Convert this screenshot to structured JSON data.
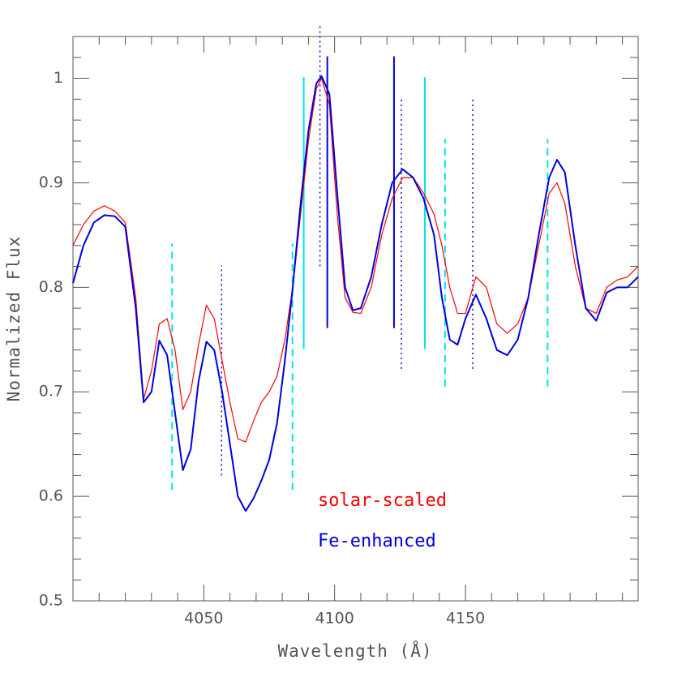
{
  "chart_data": {
    "type": "line",
    "xlabel": "Wavelength (Å)",
    "ylabel": "Normalized Flux",
    "xlim": [
      4000,
      4216
    ],
    "ylim": [
      0.5,
      1.04
    ],
    "xticks": [
      4050,
      4100,
      4150
    ],
    "yticks": [
      0.5,
      0.6,
      0.7,
      0.8,
      0.9,
      1
    ],
    "xminorticks": [
      4000,
      4010,
      4020,
      4030,
      4040,
      4060,
      4070,
      4080,
      4090,
      4110,
      4120,
      4130,
      4140,
      4160,
      4170,
      4180,
      4190,
      4200,
      4210
    ],
    "yminorticks": [
      0.52,
      0.54,
      0.56,
      0.58,
      0.62,
      0.64,
      0.66,
      0.68,
      0.72,
      0.74,
      0.76,
      0.78,
      0.82,
      0.84,
      0.86,
      0.88,
      0.92,
      0.94,
      0.96,
      0.98,
      1.02,
      1.04
    ],
    "x": [
      4000,
      4004,
      4008,
      4012,
      4016,
      4020,
      4024,
      4027,
      4030,
      4033,
      4036,
      4039,
      4042,
      4045,
      4048,
      4051,
      4054,
      4057,
      4060,
      4063,
      4066,
      4069,
      4072,
      4075,
      4078,
      4081,
      4084,
      4087,
      4090,
      4093,
      4095,
      4098,
      4101,
      4104,
      4107,
      4110,
      4114,
      4118,
      4122,
      4126,
      4130,
      4134,
      4138,
      4141,
      4144,
      4147,
      4150,
      4154,
      4158,
      4162,
      4166,
      4170,
      4174,
      4178,
      4182,
      4185,
      4188,
      4192,
      4196,
      4200,
      4204,
      4208,
      4212,
      4216
    ],
    "series": [
      {
        "name": "solar-scaled",
        "color": "#ff0000",
        "width": 1.2,
        "values": [
          0.84,
          0.86,
          0.873,
          0.878,
          0.873,
          0.862,
          0.79,
          0.693,
          0.72,
          0.765,
          0.77,
          0.74,
          0.683,
          0.7,
          0.745,
          0.783,
          0.77,
          0.73,
          0.69,
          0.655,
          0.652,
          0.672,
          0.69,
          0.7,
          0.715,
          0.75,
          0.8,
          0.87,
          0.94,
          0.99,
          1.0,
          0.975,
          0.87,
          0.79,
          0.776,
          0.775,
          0.8,
          0.85,
          0.885,
          0.905,
          0.905,
          0.89,
          0.87,
          0.84,
          0.8,
          0.775,
          0.775,
          0.81,
          0.8,
          0.765,
          0.756,
          0.765,
          0.79,
          0.84,
          0.89,
          0.9,
          0.88,
          0.82,
          0.78,
          0.775,
          0.8,
          0.807,
          0.81,
          0.82
        ]
      },
      {
        "name": "Fe-enhanced",
        "color": "#0000dd",
        "width": 2,
        "values": [
          0.804,
          0.84,
          0.862,
          0.869,
          0.868,
          0.858,
          0.78,
          0.69,
          0.7,
          0.749,
          0.735,
          0.68,
          0.625,
          0.645,
          0.71,
          0.748,
          0.74,
          0.7,
          0.65,
          0.6,
          0.586,
          0.598,
          0.615,
          0.635,
          0.67,
          0.73,
          0.8,
          0.88,
          0.95,
          0.995,
          1.002,
          0.985,
          0.89,
          0.8,
          0.778,
          0.78,
          0.81,
          0.86,
          0.9,
          0.913,
          0.905,
          0.885,
          0.85,
          0.79,
          0.75,
          0.745,
          0.77,
          0.793,
          0.77,
          0.74,
          0.735,
          0.75,
          0.79,
          0.85,
          0.905,
          0.922,
          0.91,
          0.84,
          0.78,
          0.768,
          0.795,
          0.8,
          0.8,
          0.81
        ]
      }
    ],
    "markers": [
      {
        "x": 4037.9,
        "y0": 0.606,
        "y1": 0.842,
        "color": "#00e5e5",
        "style": "dashed"
      },
      {
        "x": 4083.9,
        "y0": 0.606,
        "y1": 0.842,
        "color": "#00e5e5",
        "style": "dashed"
      },
      {
        "x": 4142.2,
        "y0": 0.705,
        "y1": 0.942,
        "color": "#00e5e5",
        "style": "dashed"
      },
      {
        "x": 4181.4,
        "y0": 0.705,
        "y1": 0.942,
        "color": "#00e5e5",
        "style": "dashed"
      },
      {
        "x": 4056.8,
        "y0": 0.62,
        "y1": 0.821,
        "color": "#0000dd",
        "style": "dotted"
      },
      {
        "x": 4094.4,
        "y0": 0.82,
        "y1": 1.052,
        "color": "#0000dd",
        "style": "dotted"
      },
      {
        "x": 4125.5,
        "y0": 0.722,
        "y1": 0.981,
        "color": "#0000dd",
        "style": "dotted"
      },
      {
        "x": 4152.8,
        "y0": 0.722,
        "y1": 0.981,
        "color": "#0000dd",
        "style": "dotted"
      },
      {
        "x": 4097.2,
        "y0": 0.761,
        "y1": 1.021,
        "color": "#0000dd",
        "style": "solid"
      },
      {
        "x": 4122.7,
        "y0": 0.761,
        "y1": 1.021,
        "color": "#0000dd",
        "style": "solid"
      },
      {
        "x": 4088.2,
        "y0": 0.741,
        "y1": 1.001,
        "color": "#00e5e5",
        "style": "solid"
      },
      {
        "x": 4134.5,
        "y0": 0.741,
        "y1": 1.001,
        "color": "#00e5e5",
        "style": "solid"
      }
    ]
  }
}
